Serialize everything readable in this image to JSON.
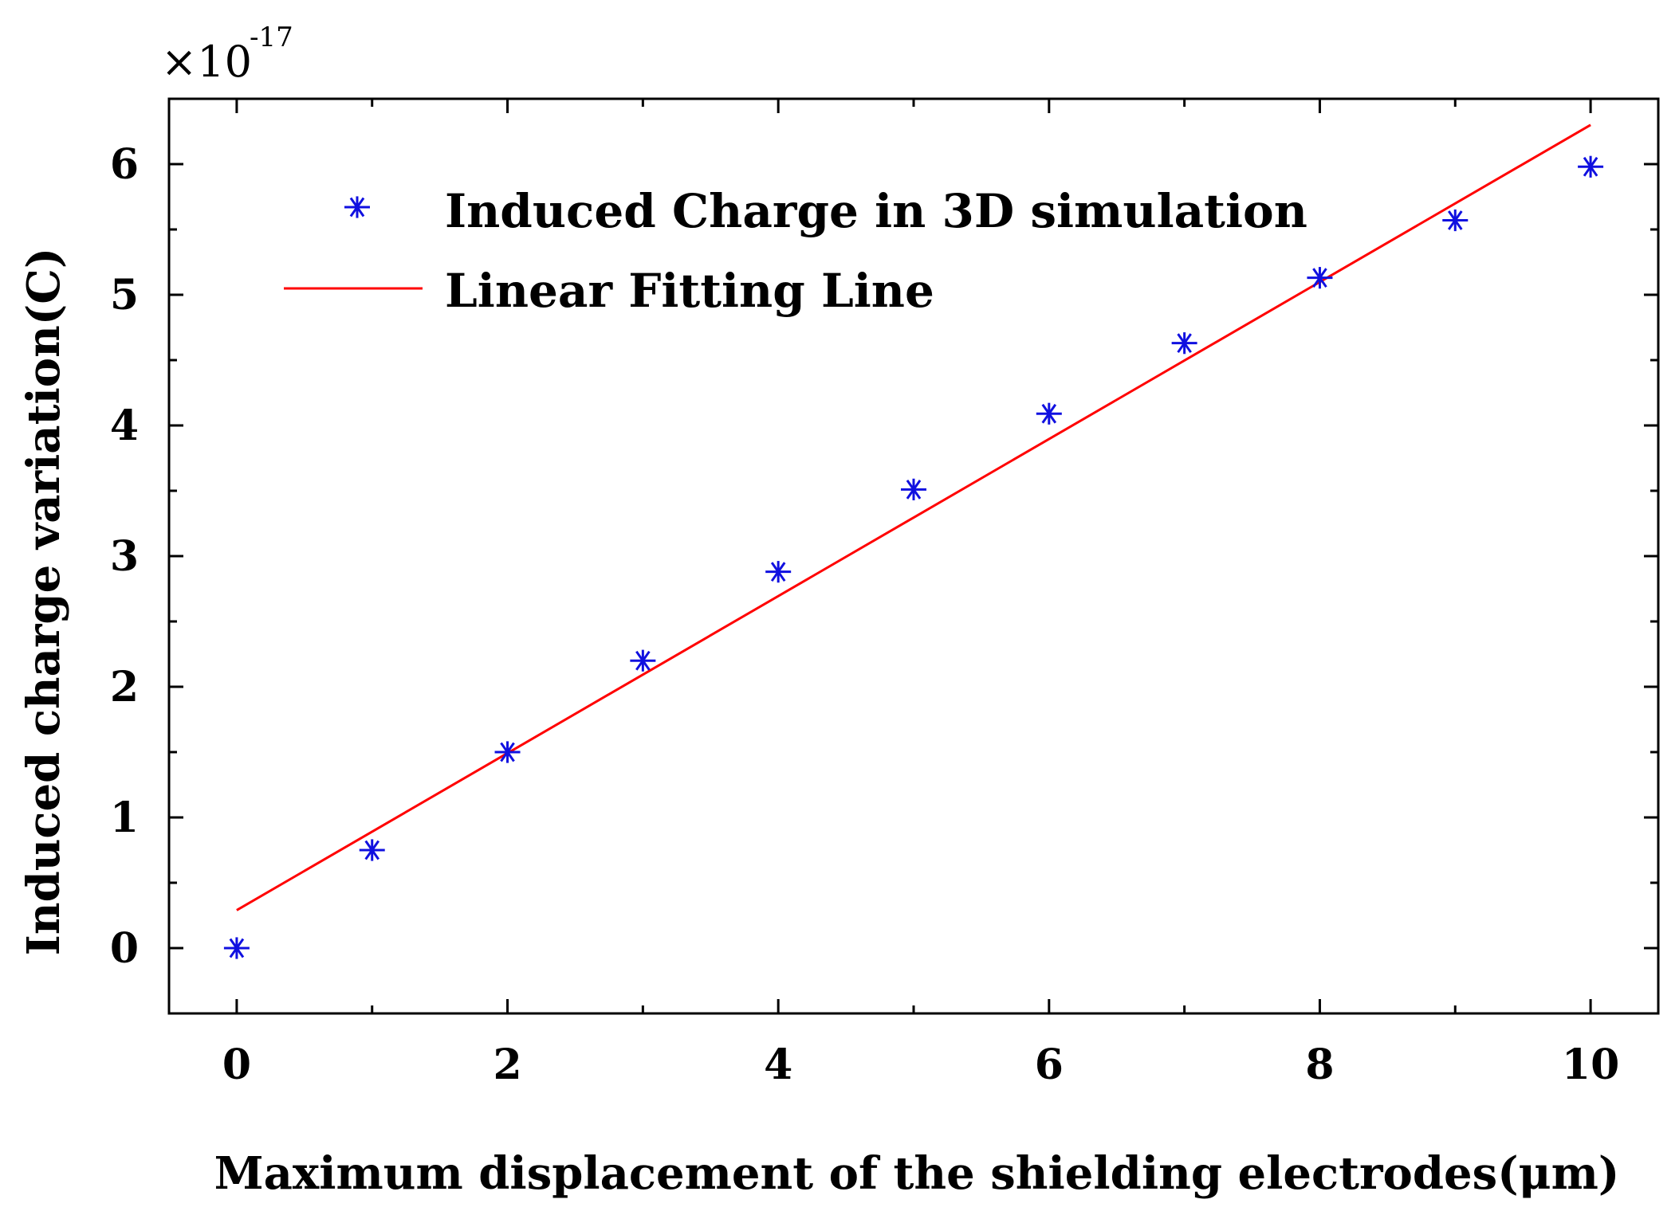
{
  "chart_data": {
    "type": "scatter",
    "title": "",
    "xlabel": "Maximum displacement of the shielding electrodes(μm)",
    "ylabel": "Induced charge variation(C)",
    "y_multiplier_base": "×10",
    "y_multiplier_exponent": "-17",
    "xlim": [
      -0.5,
      10.5
    ],
    "ylim": [
      -0.5,
      6.5
    ],
    "x_ticks": [
      0,
      2,
      4,
      6,
      8,
      10
    ],
    "x_tick_labels": [
      "0",
      "2",
      "4",
      "6",
      "8",
      "10"
    ],
    "y_ticks": [
      0,
      1,
      2,
      3,
      4,
      5,
      6
    ],
    "y_tick_labels": [
      "0",
      "1",
      "2",
      "3",
      "4",
      "5",
      "6"
    ],
    "grid": false,
    "legend_position": "top-left",
    "series": [
      {
        "name": "Induced Charge in 3D simulation",
        "kind": "scatter",
        "marker": "asterisk",
        "color": "#1010e0",
        "x": [
          0,
          1,
          2,
          3,
          4,
          5,
          6,
          7,
          8,
          9,
          10
        ],
        "y": [
          0.0,
          0.75,
          1.5,
          2.2,
          2.88,
          3.51,
          4.09,
          4.63,
          5.13,
          5.57,
          5.98
        ]
      },
      {
        "name": "Linear Fitting Line",
        "kind": "line",
        "color": "#ff0000",
        "x": [
          0,
          10
        ],
        "y": [
          0.29,
          6.3
        ]
      }
    ]
  }
}
